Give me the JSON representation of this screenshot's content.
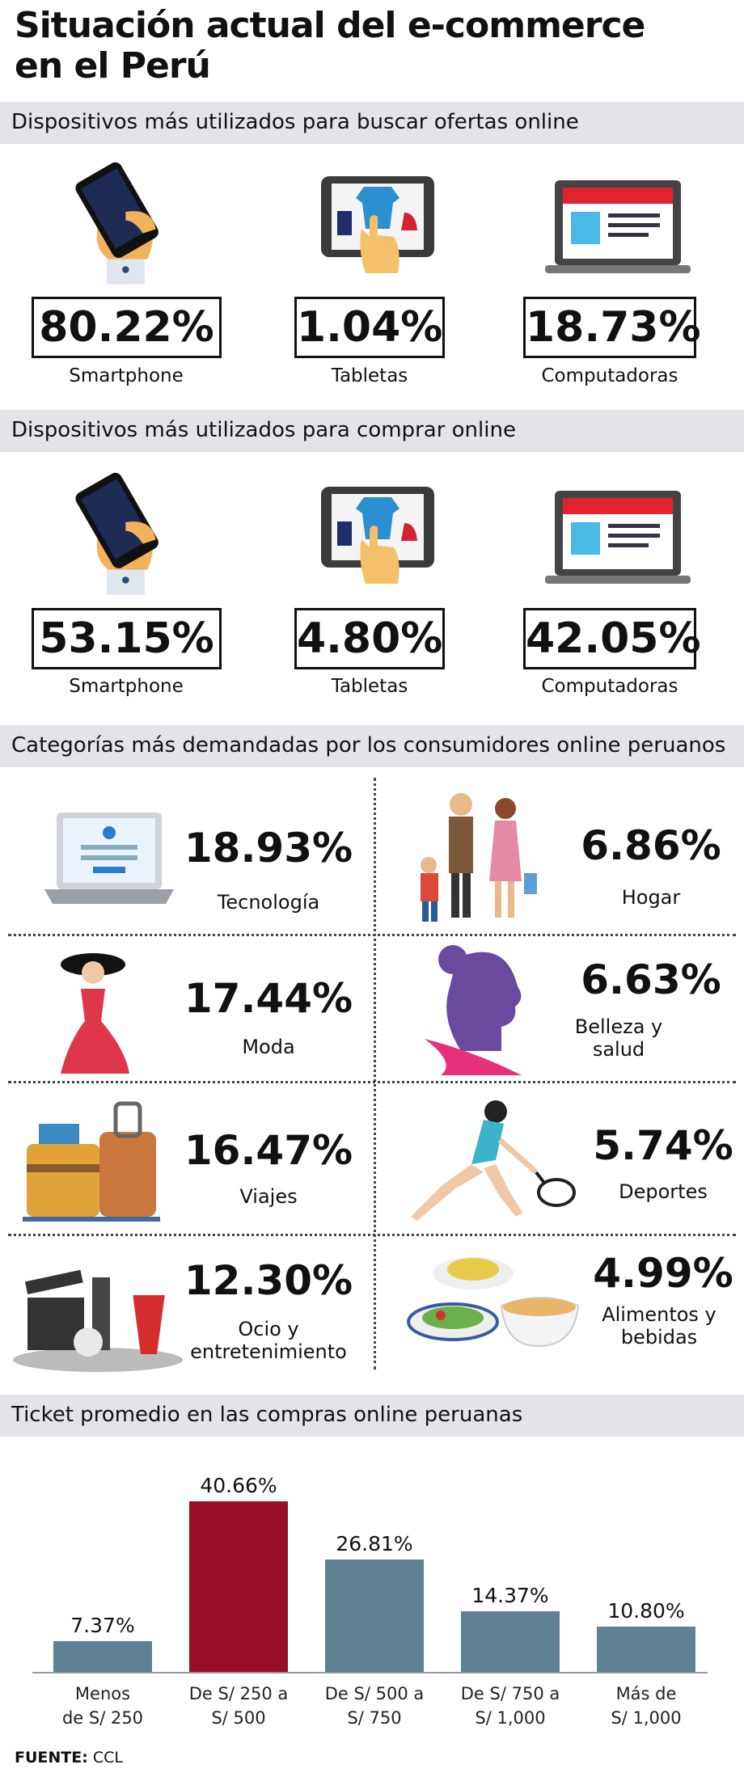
{
  "header": {
    "title": [
      "Situación actual del e-commerce",
      "en el Perú"
    ]
  },
  "sections": [
    {
      "title": "Dispositivos más utilizados para buscar ofertas online",
      "items": [
        {
          "value": "80.22%",
          "label": "Smartphone"
        },
        {
          "value": "1.04%",
          "label": "Tabletas"
        },
        {
          "value": "18.73%",
          "label": "Computadoras"
        }
      ]
    },
    {
      "title": "Dispositivos más utilizados para comprar online",
      "items": [
        {
          "value": "53.15%",
          "label": "Smartphone"
        },
        {
          "value": "4.80%",
          "label": "Tabletas"
        },
        {
          "value": "42.05%",
          "label": "Computadoras"
        }
      ]
    },
    {
      "title": "Categorías más demandadas por los consumidores online peruanos",
      "items": [
        {
          "value": "18.93%",
          "label": "Tecnología"
        },
        {
          "value": "6.86%",
          "label": "Hogar"
        },
        {
          "value": "17.44%",
          "label": "Moda"
        },
        {
          "value": "6.63%",
          "label": "Belleza y salud"
        },
        {
          "value": "16.47%",
          "label": "Viajes"
        },
        {
          "value": "5.74%",
          "label": "Deportes"
        },
        {
          "value": "12.30%",
          "label": "Ocio y entretenimiento"
        },
        {
          "value": "4.99%",
          "label": "Alimentos y bebidas"
        }
      ]
    }
  ],
  "chart_data": {
    "type": "bar",
    "title": "Ticket promedio en las compras online peruanas",
    "categories": [
      "Menos de S/ 250",
      "De S/ 250 a S/ 500",
      "De S/ 500 a S/ 750",
      "De S/ 750 a S/ 1,000",
      "Más de S/ 1,000"
    ],
    "values": [
      7.37,
      40.66,
      26.81,
      14.37,
      10.8
    ],
    "value_labels": [
      "7.37%",
      "40.66%",
      "26.81%",
      "14.37%",
      "10.80%"
    ],
    "colors": [
      "#5e8194",
      "#980f27",
      "#5e8194",
      "#5e8194",
      "#5e8194"
    ]
  },
  "source": {
    "label": "FUENTE:",
    "text": "CCL"
  }
}
